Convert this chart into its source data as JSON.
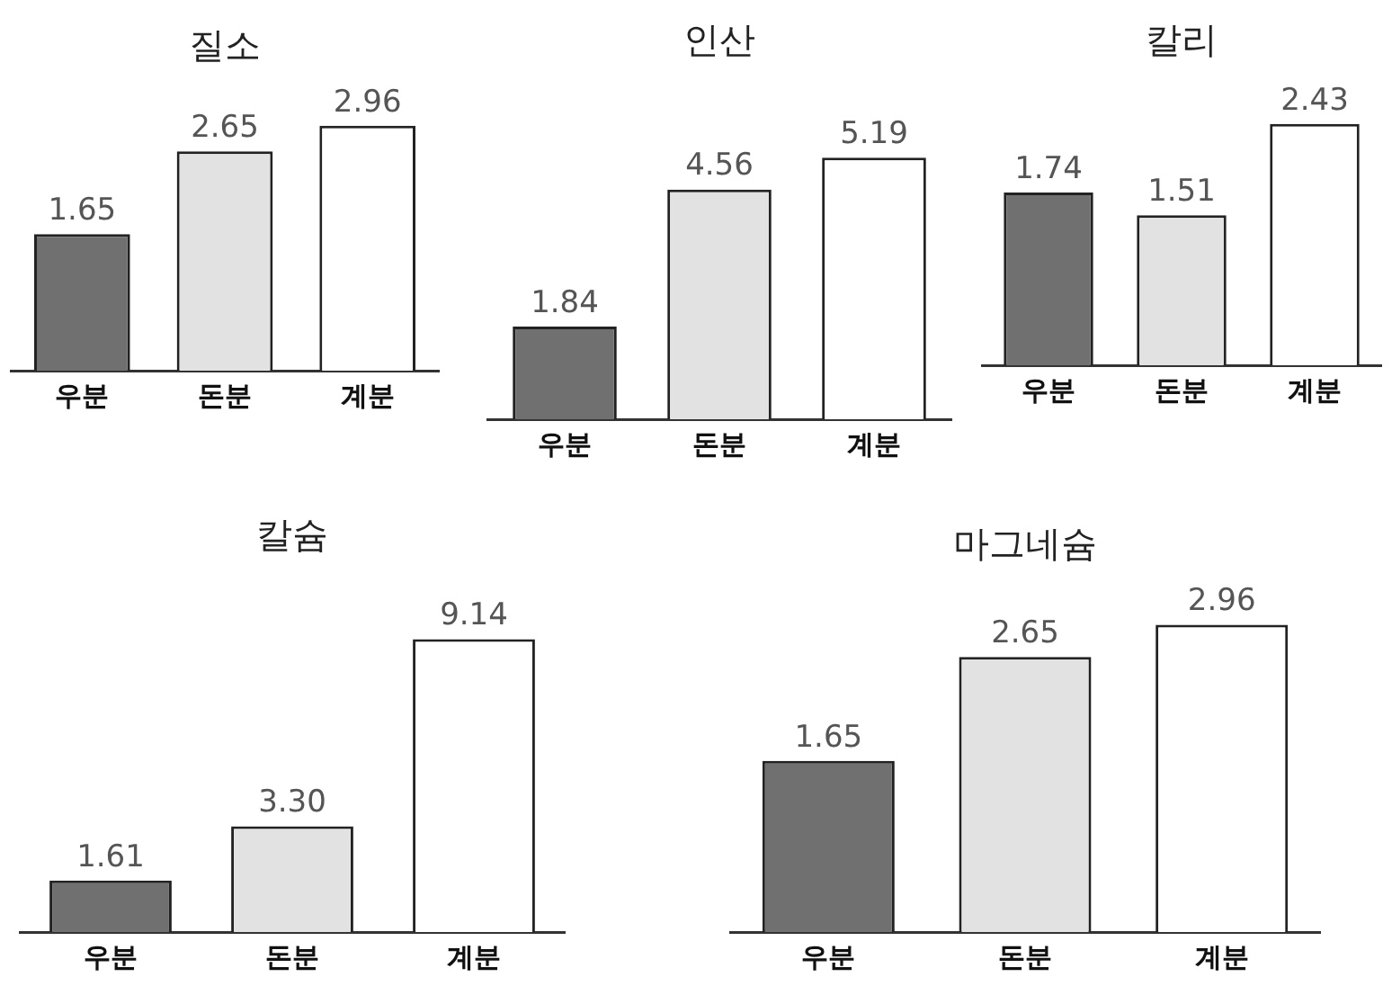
{
  "chart_data": [
    {
      "type": "bar",
      "title": "질소",
      "categories": [
        "우분",
        "돈분",
        "계분"
      ],
      "values": [
        1.65,
        2.65,
        2.96
      ],
      "value_labels": [
        "1.65",
        "2.65",
        "2.96"
      ],
      "colors": [
        "#707070",
        "#e2e2e2",
        "#ffffff"
      ],
      "grid": false,
      "legend": false
    },
    {
      "type": "bar",
      "title": "인산",
      "categories": [
        "우분",
        "돈분",
        "계분"
      ],
      "values": [
        1.84,
        4.56,
        5.19
      ],
      "value_labels": [
        "1.84",
        "4.56",
        "5.19"
      ],
      "colors": [
        "#707070",
        "#e2e2e2",
        "#ffffff"
      ],
      "grid": false,
      "legend": false
    },
    {
      "type": "bar",
      "title": "칼리",
      "categories": [
        "우분",
        "돈분",
        "계분"
      ],
      "values": [
        1.74,
        1.51,
        2.43
      ],
      "value_labels": [
        "1.74",
        "1.51",
        "2.43"
      ],
      "colors": [
        "#707070",
        "#e2e2e2",
        "#ffffff"
      ],
      "grid": false,
      "legend": false
    },
    {
      "type": "bar",
      "title": "칼슘",
      "categories": [
        "우분",
        "돈분",
        "계분"
      ],
      "values": [
        1.61,
        3.3,
        9.14
      ],
      "value_labels": [
        "1.61",
        "3.30",
        "9.14"
      ],
      "colors": [
        "#707070",
        "#e2e2e2",
        "#ffffff"
      ],
      "grid": false,
      "legend": false
    },
    {
      "type": "bar",
      "title": "마그네슘",
      "categories": [
        "우분",
        "돈분",
        "계분"
      ],
      "values": [
        1.65,
        2.65,
        2.96
      ],
      "value_labels": [
        "1.65",
        "2.65",
        "2.96"
      ],
      "colors": [
        "#707070",
        "#e2e2e2",
        "#ffffff"
      ],
      "grid": false,
      "legend": false
    }
  ]
}
